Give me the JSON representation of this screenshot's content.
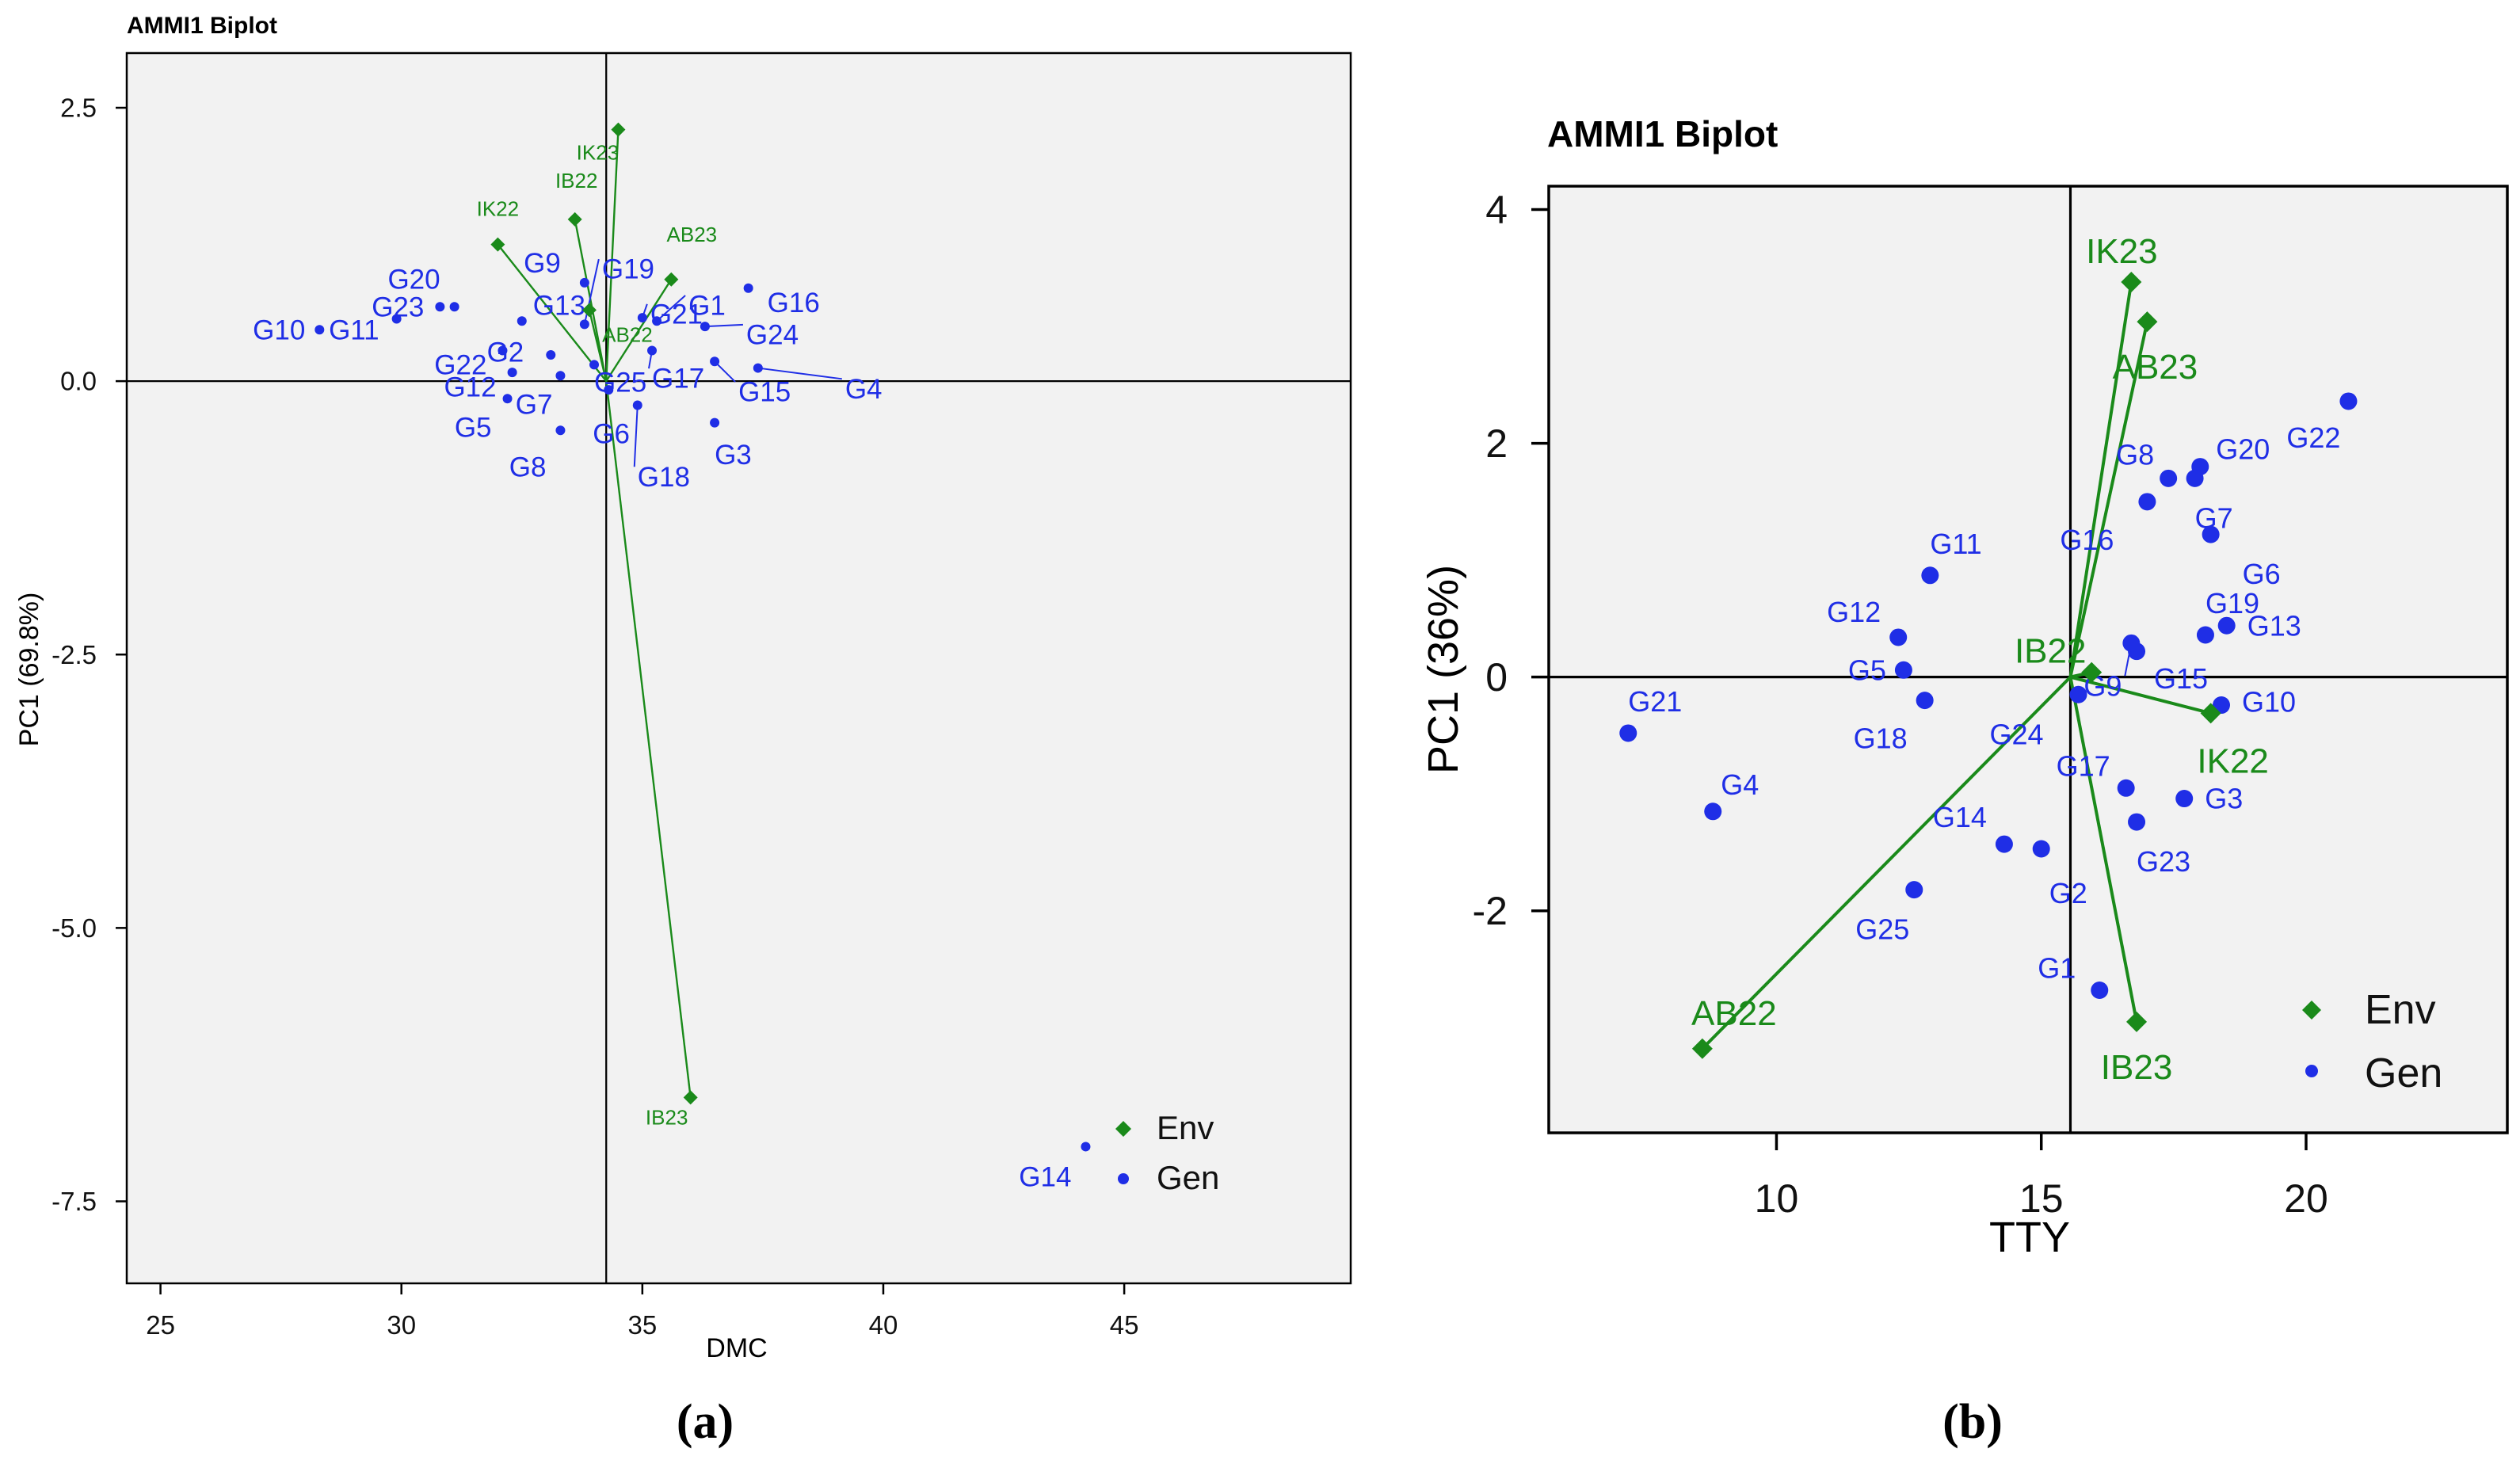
{
  "colors": {
    "env": "#1a8a1a",
    "gen": "#1f2ee6",
    "panel_bg": "#f2f2f2",
    "axis": "#000000"
  },
  "chart_data": [
    {
      "type": "scatter",
      "panel_label": "(a)",
      "title": "AMMI1 Biplot",
      "xlabel": "DMC",
      "ylabel": "PC1 (69.8%)",
      "xlim": [
        24.3,
        49.7
      ],
      "ylim": [
        -8.25,
        3.0
      ],
      "xticks": [
        25,
        30,
        35,
        40,
        45
      ],
      "yticks": [
        2.5,
        0.0,
        -2.5,
        -5.0,
        -7.5
      ],
      "ytick_labels": [
        "2.5",
        "0.0",
        "-2.5",
        "-5.0",
        "-7.5"
      ],
      "ref_x": 34.25,
      "ref_y": 0,
      "legend": {
        "position": "bottom-right",
        "entries": [
          "Env",
          "Gen"
        ]
      },
      "env": [
        {
          "name": "IK23",
          "x": 34.5,
          "y": 2.3
        },
        {
          "name": "IB22",
          "x": 33.6,
          "y": 1.48
        },
        {
          "name": "IK22",
          "x": 32.0,
          "y": 1.25
        },
        {
          "name": "AB23",
          "x": 35.6,
          "y": 0.93
        },
        {
          "name": "AB22",
          "x": 33.9,
          "y": 0.65
        },
        {
          "name": "IB23",
          "x": 36.0,
          "y": -6.55
        }
      ],
      "gen": [
        {
          "name": "G10",
          "x": 28.3,
          "y": 0.47
        },
        {
          "name": "G23",
          "x": 30.8,
          "y": 0.68
        },
        {
          "name": "G11",
          "x": 29.9,
          "y": 0.57
        },
        {
          "name": "G20",
          "x": 31.1,
          "y": 0.68
        },
        {
          "name": "G13",
          "x": 32.5,
          "y": 0.55
        },
        {
          "name": "G22",
          "x": 32.1,
          "y": 0.28
        },
        {
          "name": "G2",
          "x": 33.1,
          "y": 0.24
        },
        {
          "name": "G9",
          "x": 33.8,
          "y": 0.9
        },
        {
          "name": "G19",
          "x": 33.8,
          "y": 0.52
        },
        {
          "name": "G25",
          "x": 34.0,
          "y": 0.15
        },
        {
          "name": "G12",
          "x": 32.3,
          "y": 0.08
        },
        {
          "name": "G5",
          "x": 32.2,
          "y": -0.16
        },
        {
          "name": "G7",
          "x": 33.3,
          "y": 0.05
        },
        {
          "name": "G8",
          "x": 33.3,
          "y": -0.45
        },
        {
          "name": "G6",
          "x": 34.3,
          "y": -0.08
        },
        {
          "name": "G18",
          "x": 34.9,
          "y": -0.22
        },
        {
          "name": "G17",
          "x": 35.2,
          "y": 0.28
        },
        {
          "name": "G21",
          "x": 35.0,
          "y": 0.58
        },
        {
          "name": "G1",
          "x": 35.3,
          "y": 0.55
        },
        {
          "name": "G16",
          "x": 37.2,
          "y": 0.85
        },
        {
          "name": "G24",
          "x": 36.3,
          "y": 0.5
        },
        {
          "name": "G15",
          "x": 36.5,
          "y": 0.18
        },
        {
          "name": "G4",
          "x": 37.4,
          "y": 0.12
        },
        {
          "name": "G3",
          "x": 36.5,
          "y": -0.38
        },
        {
          "name": "G14",
          "x": 44.2,
          "y": -7.0
        }
      ]
    },
    {
      "type": "scatter",
      "panel_label": "(b)",
      "title": "AMMI1 Biplot",
      "xlabel": "TTY",
      "ylabel": "PC1 (36%)",
      "xlim": [
        5.7,
        23.8
      ],
      "ylim": [
        -3.9,
        4.2
      ],
      "xticks": [
        10,
        15,
        20
      ],
      "yticks": [
        4,
        2,
        0,
        -2
      ],
      "ytick_labels": [
        "4",
        "2",
        "0",
        "-2"
      ],
      "ref_x": 15.55,
      "ref_y": 0,
      "legend": {
        "position": "bottom-right",
        "entries": [
          "Env",
          "Gen"
        ]
      },
      "env": [
        {
          "name": "IK23",
          "x": 16.7,
          "y": 3.38
        },
        {
          "name": "AB23",
          "x": 17.0,
          "y": 3.04
        },
        {
          "name": "IB22",
          "x": 15.95,
          "y": 0.04
        },
        {
          "name": "IK22",
          "x": 18.2,
          "y": -0.31
        },
        {
          "name": "IB23",
          "x": 16.8,
          "y": -2.95
        },
        {
          "name": "AB22",
          "x": 8.6,
          "y": -3.18
        }
      ],
      "gen": [
        {
          "name": "G22",
          "x": 20.8,
          "y": 2.36
        },
        {
          "name": "G20",
          "x": 18.0,
          "y": 1.8
        },
        {
          "name": "G8",
          "x": 17.4,
          "y": 1.7
        },
        {
          "name": "G7",
          "x": 17.9,
          "y": 1.7
        },
        {
          "name": "G16",
          "x": 17.0,
          "y": 1.5
        },
        {
          "name": "G6",
          "x": 18.2,
          "y": 1.22
        },
        {
          "name": "G11",
          "x": 12.9,
          "y": 0.87
        },
        {
          "name": "G13",
          "x": 18.5,
          "y": 0.44
        },
        {
          "name": "G19",
          "x": 18.1,
          "y": 0.36
        },
        {
          "name": "G12",
          "x": 12.3,
          "y": 0.34
        },
        {
          "name": "G15",
          "x": 16.8,
          "y": 0.22
        },
        {
          "name": "G9",
          "x": 16.7,
          "y": 0.29
        },
        {
          "name": "G5",
          "x": 12.4,
          "y": 0.06
        },
        {
          "name": "G10",
          "x": 18.4,
          "y": -0.24
        },
        {
          "name": "G24",
          "x": 15.7,
          "y": -0.15
        },
        {
          "name": "G18",
          "x": 12.8,
          "y": -0.2
        },
        {
          "name": "G21",
          "x": 7.2,
          "y": -0.48
        },
        {
          "name": "G17",
          "x": 16.6,
          "y": -0.95
        },
        {
          "name": "G3",
          "x": 17.7,
          "y": -1.04
        },
        {
          "name": "G23",
          "x": 16.8,
          "y": -1.24
        },
        {
          "name": "G4",
          "x": 8.8,
          "y": -1.15
        },
        {
          "name": "G14",
          "x": 14.3,
          "y": -1.43
        },
        {
          "name": "G2",
          "x": 15.0,
          "y": -1.47
        },
        {
          "name": "G25",
          "x": 12.6,
          "y": -1.82
        },
        {
          "name": "G1",
          "x": 16.1,
          "y": -2.68
        }
      ]
    }
  ]
}
